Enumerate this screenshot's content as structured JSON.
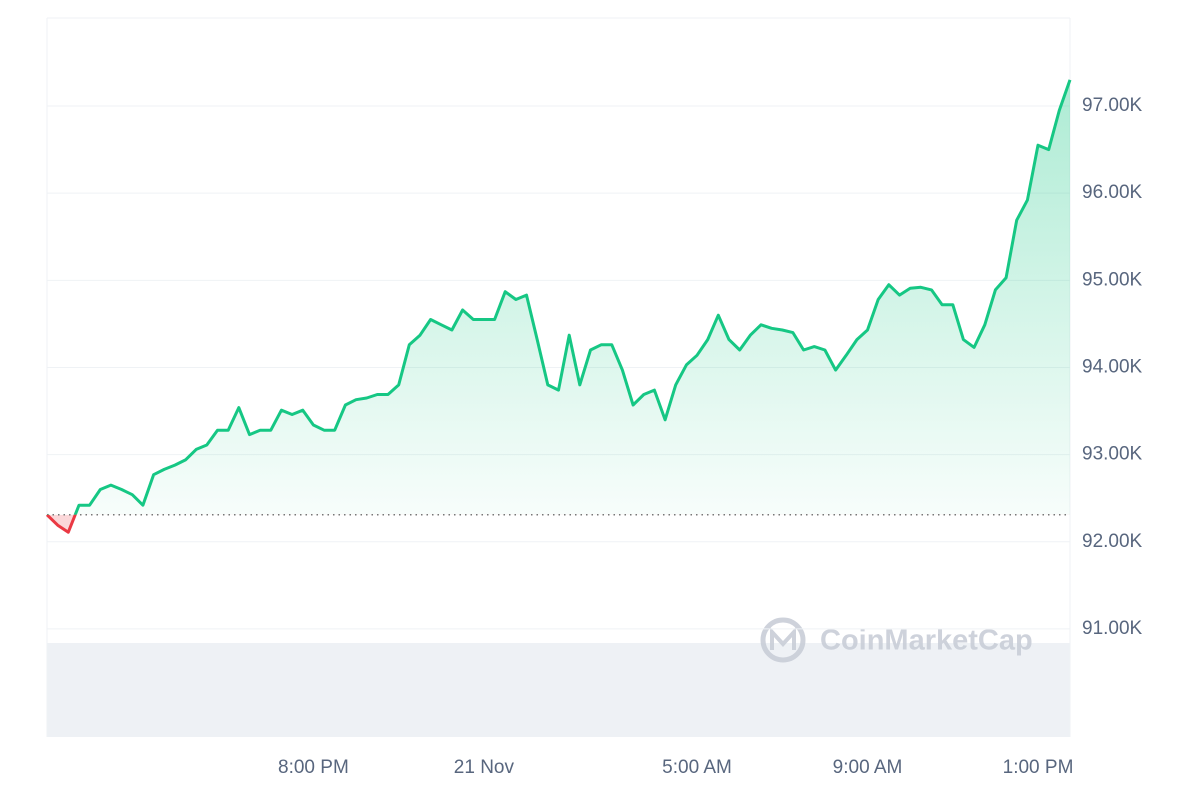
{
  "chart_data": {
    "type": "line",
    "watermark": "CoinMarketCap",
    "categories": [
      null,
      null,
      null,
      null,
      null,
      null,
      null,
      null,
      null,
      null,
      null,
      null,
      null,
      null,
      null,
      null,
      null,
      null,
      null,
      null,
      null,
      null,
      null,
      null,
      null,
      "8:00 PM",
      null,
      null,
      null,
      null,
      null,
      null,
      null,
      null,
      null,
      null,
      null,
      null,
      null,
      null,
      null,
      "21 Nov",
      null,
      null,
      null,
      null,
      null,
      null,
      null,
      null,
      null,
      null,
      null,
      null,
      null,
      null,
      null,
      null,
      null,
      null,
      null,
      "5:00 AM",
      null,
      null,
      null,
      null,
      null,
      null,
      null,
      null,
      null,
      null,
      null,
      null,
      null,
      null,
      null,
      "9:00 AM",
      null,
      null,
      null,
      null,
      null,
      null,
      null,
      null,
      null,
      null,
      null,
      null,
      null,
      null,
      null,
      "1:00 PM",
      null,
      null,
      null
    ],
    "values": [
      92310,
      92190,
      92110,
      92420,
      92420,
      92600,
      92650,
      92600,
      92540,
      92420,
      92770,
      92830,
      92880,
      92940,
      93060,
      93110,
      93280,
      93280,
      93540,
      93230,
      93280,
      93280,
      93510,
      93460,
      93510,
      93340,
      93280,
      93280,
      93570,
      93630,
      93650,
      93690,
      93690,
      93800,
      94260,
      94370,
      94550,
      94490,
      94430,
      94660,
      94550,
      94550,
      94550,
      94870,
      94780,
      94830,
      94320,
      93800,
      93740,
      94370,
      93800,
      94200,
      94260,
      94260,
      93970,
      93570,
      93690,
      93740,
      93400,
      93800,
      94030,
      94140,
      94320,
      94600,
      94320,
      94200,
      94370,
      94490,
      94450,
      94430,
      94400,
      94200,
      94240,
      94200,
      93970,
      94140,
      94320,
      94430,
      94780,
      94950,
      94830,
      94910,
      94920,
      94890,
      94720,
      94720,
      94320,
      94230,
      94490,
      94890,
      95030,
      95690,
      95920,
      96550,
      96500,
      96950,
      97300
    ],
    "baseline": 92310,
    "color": "#16c784",
    "down_color": "#ea3943",
    "ylim": [
      89760,
      98010
    ],
    "yticks": [
      {
        "value": 91000,
        "label": "91.00K"
      },
      {
        "value": 92000,
        "label": "92.00K"
      },
      {
        "value": 93000,
        "label": "93.00K"
      },
      {
        "value": 94000,
        "label": "94.00K"
      },
      {
        "value": 95000,
        "label": "95.00K"
      },
      {
        "value": 96000,
        "label": "96.00K"
      },
      {
        "value": 97000,
        "label": "97.00K"
      }
    ],
    "grid": true
  }
}
